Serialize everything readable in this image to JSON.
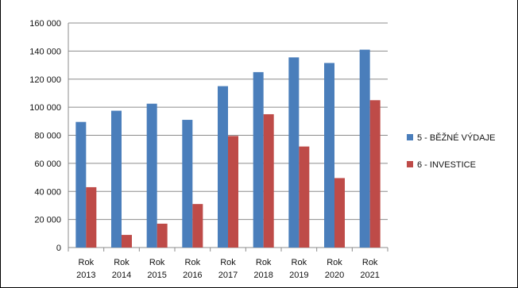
{
  "chart_data": {
    "type": "bar",
    "categories": [
      "Rok 2013",
      "Rok 2014",
      "Rok 2015",
      "Rok 2016",
      "Rok 2017",
      "Rok 2018",
      "Rok 2019",
      "Rok 2020",
      "Rok 2021"
    ],
    "category_lines": [
      [
        "Rok",
        "2013"
      ],
      [
        "Rok",
        "2014"
      ],
      [
        "Rok",
        "2015"
      ],
      [
        "Rok",
        "2016"
      ],
      [
        "Rok",
        "2017"
      ],
      [
        "Rok",
        "2018"
      ],
      [
        "Rok",
        "2019"
      ],
      [
        "Rok",
        "2020"
      ],
      [
        "Rok",
        "2021"
      ]
    ],
    "series": [
      {
        "name": "5 - BĚŽNÉ VÝDAJE",
        "color": "#4a7ebb",
        "values": [
          89500,
          97500,
          102500,
          91000,
          115000,
          125000,
          135500,
          131500,
          141000
        ]
      },
      {
        "name": "6 - INVESTICE",
        "color": "#be4b48",
        "values": [
          43000,
          9000,
          17000,
          31000,
          79500,
          95000,
          72000,
          49500,
          105000
        ]
      }
    ],
    "ylim": [
      0,
      160000
    ],
    "yticks": [
      0,
      20000,
      40000,
      60000,
      80000,
      100000,
      120000,
      140000,
      160000
    ],
    "ytick_labels": [
      "0",
      "20 000",
      "40 000",
      "60 000",
      "80 000",
      "100 000",
      "120 000",
      "140 000",
      "160 000"
    ],
    "grid": true,
    "legend_position": "right",
    "title": "",
    "xlabel": "",
    "ylabel": ""
  }
}
